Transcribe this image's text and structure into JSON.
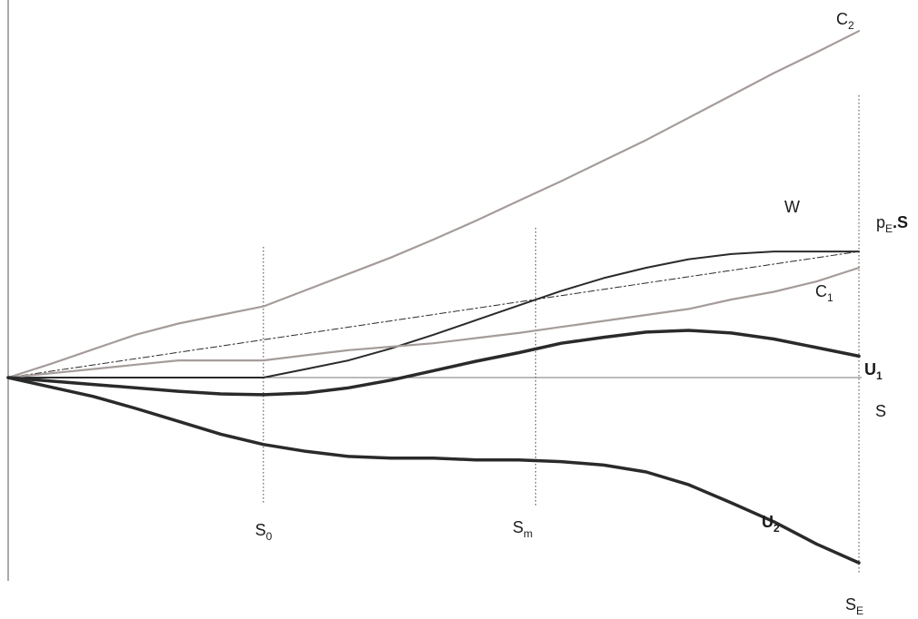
{
  "chart_data": {
    "type": "line",
    "title": "",
    "xlabel": "S",
    "ylabel": "",
    "xlim": [
      0,
      100
    ],
    "ylim": [
      -24,
      42
    ],
    "grid": false,
    "markers": [
      {
        "id": "s0",
        "label": "S",
        "sub": "0",
        "x": 30
      },
      {
        "id": "sm",
        "label": "S",
        "sub": "m",
        "x": 62
      },
      {
        "id": "se",
        "label": "S",
        "sub": "E",
        "x": 100
      }
    ],
    "series": [
      {
        "id": "c2",
        "label": "C",
        "sub": "2",
        "bold": false,
        "color": "#a59c9a",
        "width": 2.2,
        "dash": "",
        "x": [
          0,
          5,
          10,
          15,
          20,
          25,
          30,
          35,
          40,
          45,
          50,
          55,
          60,
          65,
          70,
          75,
          80,
          85,
          90,
          95,
          100
        ],
        "y": [
          0,
          1.6,
          3.3,
          5.0,
          6.3,
          7.3,
          8.3,
          10.2,
          12.1,
          14.0,
          16.1,
          18.3,
          20.6,
          22.9,
          25.3,
          27.7,
          30.3,
          32.9,
          35.5,
          37.9,
          40.4
        ]
      },
      {
        "id": "w",
        "label": "W",
        "sub": "",
        "bold": false,
        "color": "#2a2a2a",
        "width": 2,
        "dash": "",
        "x": [
          0,
          10,
          20,
          30,
          35,
          40,
          45,
          50,
          55,
          60,
          65,
          70,
          75,
          80,
          85,
          90,
          95,
          100
        ],
        "y": [
          0,
          0,
          0,
          0,
          1.0,
          2.0,
          3.4,
          5.0,
          6.7,
          8.4,
          10.1,
          11.6,
          12.8,
          13.8,
          14.4,
          14.7,
          14.7,
          14.7
        ]
      },
      {
        "id": "pe",
        "label": "p",
        "sub": "E",
        "suffix": ".S",
        "bold": false,
        "color": "#2a2a2a",
        "width": 1,
        "dash": "7,3,2,3",
        "x": [
          0,
          100
        ],
        "y": [
          0,
          14.7
        ]
      },
      {
        "id": "c1",
        "label": "C",
        "sub": "1",
        "bold": false,
        "color": "#a59c9a",
        "width": 2.2,
        "dash": "",
        "x": [
          0,
          5,
          10,
          15,
          20,
          25,
          30,
          35,
          40,
          45,
          50,
          55,
          60,
          65,
          70,
          75,
          80,
          85,
          90,
          95,
          100
        ],
        "y": [
          0,
          0.5,
          1.0,
          1.5,
          2.0,
          2.0,
          2.0,
          2.6,
          3.2,
          3.6,
          4.0,
          4.6,
          5.2,
          5.9,
          6.6,
          7.3,
          8.0,
          9.1,
          10.0,
          11.2,
          12.8
        ]
      },
      {
        "id": "u1",
        "label": "U",
        "sub": "1",
        "bold": true,
        "color": "#2a2a2a",
        "width": 3.5,
        "dash": "",
        "x": [
          0,
          10,
          20,
          25,
          30,
          35,
          40,
          45,
          50,
          55,
          60,
          65,
          70,
          75,
          80,
          85,
          90,
          95,
          100
        ],
        "y": [
          0,
          -0.8,
          -1.6,
          -1.9,
          -2.0,
          -1.8,
          -1.2,
          -0.3,
          0.8,
          1.9,
          2.9,
          4.0,
          4.7,
          5.3,
          5.5,
          5.2,
          4.5,
          3.5,
          2.5
        ]
      },
      {
        "id": "u2",
        "label": "U",
        "sub": "2",
        "bold": true,
        "color": "#2a2a2a",
        "width": 3.5,
        "dash": "",
        "x": [
          0,
          5,
          10,
          15,
          20,
          25,
          30,
          35,
          40,
          45,
          50,
          55,
          60,
          65,
          70,
          75,
          80,
          85,
          90,
          95,
          100
        ],
        "y": [
          0,
          -1.1,
          -2.2,
          -3.6,
          -5.1,
          -6.6,
          -7.8,
          -8.6,
          -9.2,
          -9.4,
          -9.4,
          -9.6,
          -9.6,
          -9.8,
          -10.2,
          -11.0,
          -12.5,
          -14.6,
          -16.8,
          -19.4,
          -21.6
        ]
      }
    ]
  }
}
